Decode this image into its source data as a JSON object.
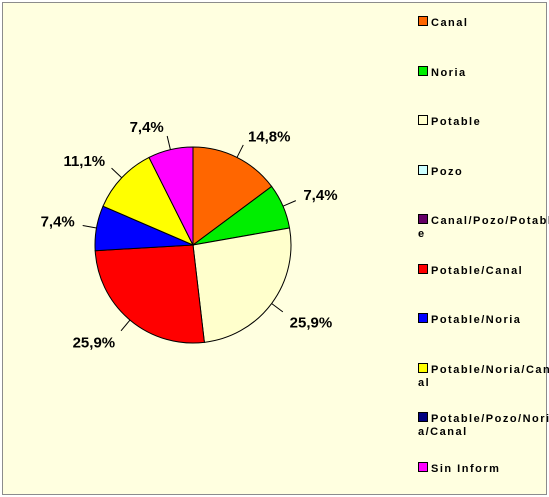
{
  "chart_data": {
    "type": "pie",
    "categories": [
      "Canal",
      "Noria",
      "Potable",
      "Pozo",
      "Canal/Pozo/Potable",
      "Potable/Canal",
      "Potable/Noria",
      "Potable/Noria/Canal",
      "Potable/Pozo/Noria/Canal",
      "Sin Inform"
    ],
    "values": [
      14.8,
      7.4,
      25.9,
      0,
      0,
      25.9,
      7.4,
      11.1,
      0,
      7.4
    ],
    "value_labels": [
      "14,8%",
      "7,4%",
      "25,9%",
      null,
      null,
      "25,9%",
      "7,4%",
      "11,1%",
      null,
      "7,4%"
    ],
    "colors": [
      "#ff6600",
      "#00ee00",
      "#ffffcc",
      "#ccffff",
      "#660066",
      "#ff0000",
      "#0000ff",
      "#ffff00",
      "#000080",
      "#ff00ff"
    ],
    "legend": "right"
  }
}
